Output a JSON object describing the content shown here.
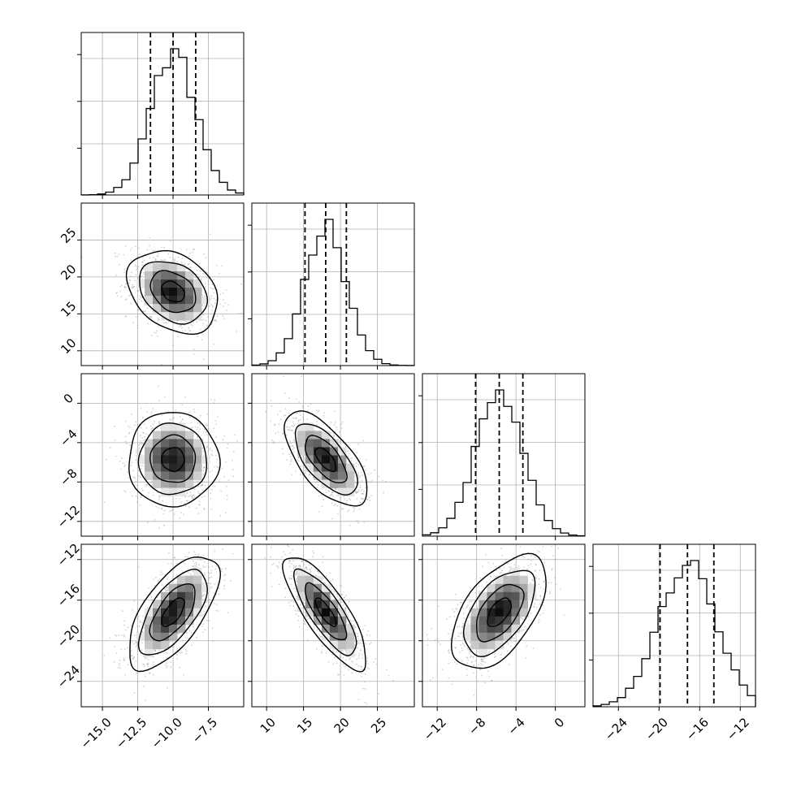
{
  "chart_data": {
    "type": "corner",
    "variables": [
      {
        "mean": -10.0,
        "sd": 1.6,
        "range": [
          -16.5,
          -5.0
        ],
        "ticks": [
          "−15.0",
          "−12.5",
          "−10.0",
          "−7.5"
        ],
        "tick_values": [
          -15,
          -12.5,
          -10,
          -7.5
        ],
        "quantiles": [
          -11.6,
          -10.0,
          -8.4
        ]
      },
      {
        "mean": 18.0,
        "sd": 2.8,
        "range": [
          8.0,
          30.0
        ],
        "ticks": [
          "10",
          "15",
          "20",
          "25"
        ],
        "tick_values": [
          10,
          15,
          20,
          25
        ],
        "quantiles": [
          15.2,
          18.0,
          20.8
        ]
      },
      {
        "mean": -5.7,
        "sd": 2.4,
        "range": [
          -13.5,
          3.0
        ],
        "ticks": [
          "−12",
          "−8",
          "−4",
          "0"
        ],
        "tick_values": [
          -12,
          -8,
          -4,
          0
        ],
        "quantiles": [
          -8.1,
          -5.7,
          -3.3
        ]
      },
      {
        "mean": -17.2,
        "sd": 2.8,
        "range": [
          -26.5,
          -10.5
        ],
        "ticks": [
          "−24",
          "−20",
          "−16",
          "−12"
        ],
        "tick_values": [
          -24,
          -20,
          -16,
          -12
        ],
        "quantiles": [
          -19.9,
          -17.2,
          -14.6
        ]
      }
    ],
    "correlations": [
      [
        1,
        -0.3,
        0.0,
        0.65
      ],
      [
        -0.3,
        1,
        -0.65,
        -0.8
      ],
      [
        0.0,
        -0.65,
        1,
        0.55
      ],
      [
        0.65,
        -0.8,
        0.55,
        1
      ]
    ],
    "contour_levels": [
      0.5,
      1.0,
      1.5,
      2.0
    ],
    "histogram_bins": 20,
    "grid": true
  }
}
